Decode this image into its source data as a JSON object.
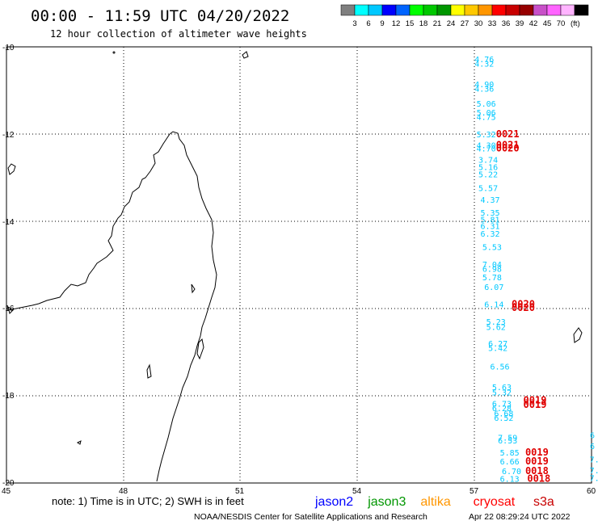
{
  "header": {
    "title": "00:00 - 11:59 UTC 04/20/2022",
    "subtitle": "12 hour collection of altimeter wave heights"
  },
  "legend": {
    "colors": [
      "#7f7f7f",
      "#00ffff",
      "#00c8ff",
      "#0000ff",
      "#0064ff",
      "#00ff00",
      "#00c800",
      "#009600",
      "#ffff00",
      "#ffc800",
      "#ff9600",
      "#ff0000",
      "#c80000",
      "#960000",
      "#c850c8",
      "#ff64ff",
      "#ffb4ff",
      "#000000"
    ],
    "labels": [
      "3",
      "6",
      "9",
      "12",
      "15",
      "18",
      "21",
      "24",
      "27",
      "30",
      "33",
      "36",
      "39",
      "42",
      "45",
      "70"
    ],
    "unit": "(ft)"
  },
  "axes": {
    "lat_labels": [
      "-10",
      "-12",
      "-14",
      "-16",
      "-18",
      "-20"
    ],
    "lon_labels": [
      "45",
      "48",
      "51",
      "54",
      "57",
      "60"
    ]
  },
  "footer": {
    "note": "note: 1) Time is in UTC; 2) SWH is in feet",
    "satellites": [
      {
        "name": "jason2",
        "color": "#0000ff"
      },
      {
        "name": "jason3",
        "color": "#009600"
      },
      {
        "name": "altika",
        "color": "#ff9600"
      },
      {
        "name": "cryosat",
        "color": "#ff0000"
      },
      {
        "name": "s3a",
        "color": "#c80000"
      }
    ],
    "credit": "NOAA/NESDIS Center for Satellite Applications and Research",
    "timestamp": "Apr 22 08:29:24 UTC 2022"
  },
  "wave_heights": [
    {
      "lat": -10.28,
      "lon": 57.0,
      "v": "4.76"
    },
    {
      "lat": -10.38,
      "lon": 57.0,
      "v": "4.32"
    },
    {
      "lat": -10.85,
      "lon": 57.0,
      "v": "4.90"
    },
    {
      "lat": -10.95,
      "lon": 57.0,
      "v": "4.36"
    },
    {
      "lat": -11.3,
      "lon": 57.05,
      "v": "5.06"
    },
    {
      "lat": -11.5,
      "lon": 57.05,
      "v": "5.06"
    },
    {
      "lat": -11.6,
      "lon": 57.05,
      "v": "4.75"
    },
    {
      "lat": -12.0,
      "lon": 57.05,
      "v": "5.32"
    },
    {
      "lat": -12.25,
      "lon": 57.05,
      "v": "4.30"
    },
    {
      "lat": -12.32,
      "lon": 57.05,
      "v": "4.70"
    },
    {
      "lat": -12.58,
      "lon": 57.1,
      "v": "3.74"
    },
    {
      "lat": -12.75,
      "lon": 57.1,
      "v": "5.16"
    },
    {
      "lat": -12.92,
      "lon": 57.1,
      "v": "5.22"
    },
    {
      "lat": -13.23,
      "lon": 57.1,
      "v": "5.57"
    },
    {
      "lat": -13.5,
      "lon": 57.15,
      "v": "4.37"
    },
    {
      "lat": -13.8,
      "lon": 57.15,
      "v": "5.35"
    },
    {
      "lat": -13.95,
      "lon": 57.15,
      "v": "5.81"
    },
    {
      "lat": -14.1,
      "lon": 57.15,
      "v": "6.31"
    },
    {
      "lat": -14.28,
      "lon": 57.15,
      "v": "6.32"
    },
    {
      "lat": -14.58,
      "lon": 57.2,
      "v": "5.53"
    },
    {
      "lat": -14.98,
      "lon": 57.2,
      "v": "7.04"
    },
    {
      "lat": -15.08,
      "lon": 57.2,
      "v": "6.98"
    },
    {
      "lat": -15.28,
      "lon": 57.2,
      "v": "5.78"
    },
    {
      "lat": -15.5,
      "lon": 57.25,
      "v": "6.07"
    },
    {
      "lat": -15.9,
      "lon": 57.25,
      "v": "6.14"
    },
    {
      "lat": -16.3,
      "lon": 57.3,
      "v": "5.23"
    },
    {
      "lat": -16.42,
      "lon": 57.3,
      "v": "5.62"
    },
    {
      "lat": -16.8,
      "lon": 57.35,
      "v": "6.27"
    },
    {
      "lat": -16.9,
      "lon": 57.35,
      "v": "5.42"
    },
    {
      "lat": -17.32,
      "lon": 57.4,
      "v": "6.56"
    },
    {
      "lat": -17.8,
      "lon": 57.45,
      "v": "5.63"
    },
    {
      "lat": -17.92,
      "lon": 57.45,
      "v": "5.32"
    },
    {
      "lat": -18.18,
      "lon": 57.45,
      "v": "6.73"
    },
    {
      "lat": -18.28,
      "lon": 57.45,
      "v": "6.28"
    },
    {
      "lat": -18.4,
      "lon": 57.5,
      "v": "6.68"
    },
    {
      "lat": -18.5,
      "lon": 57.5,
      "v": "6.52"
    },
    {
      "lat": -18.95,
      "lon": 57.6,
      "v": "7.59"
    },
    {
      "lat": -19.02,
      "lon": 57.6,
      "v": "6.53"
    },
    {
      "lat": -19.3,
      "lon": 57.65,
      "v": "5.85"
    },
    {
      "lat": -19.5,
      "lon": 57.65,
      "v": "6.66"
    },
    {
      "lat": -19.72,
      "lon": 57.7,
      "v": "6.70"
    },
    {
      "lat": -19.9,
      "lon": 57.65,
      "v": "6.13"
    }
  ],
  "passes": [
    {
      "lat": -12.0,
      "lon": 57.55,
      "v": "0021"
    },
    {
      "lat": -12.25,
      "lon": 57.55,
      "v": "0021"
    },
    {
      "lat": -12.32,
      "lon": 57.55,
      "v": "0020"
    },
    {
      "lat": -15.9,
      "lon": 57.95,
      "v": "0020"
    },
    {
      "lat": -15.98,
      "lon": 57.95,
      "v": "0020"
    },
    {
      "lat": -18.1,
      "lon": 58.25,
      "v": "0019"
    },
    {
      "lat": -18.2,
      "lon": 58.25,
      "v": "0019"
    },
    {
      "lat": -19.3,
      "lon": 58.3,
      "v": "0019"
    },
    {
      "lat": -19.5,
      "lon": 58.3,
      "v": "0019"
    },
    {
      "lat": -19.72,
      "lon": 58.3,
      "v": "0018"
    },
    {
      "lat": -19.9,
      "lon": 58.35,
      "v": "0018"
    }
  ],
  "edge_values": [
    {
      "lat": -18.9,
      "lon": 60.05,
      "v": "6"
    },
    {
      "lat": -19.15,
      "lon": 60.05,
      "v": "6"
    },
    {
      "lat": -19.45,
      "lon": 59.95,
      "v": "7."
    },
    {
      "lat": -19.7,
      "lon": 59.95,
      "v": "7."
    },
    {
      "lat": -19.88,
      "lon": 59.95,
      "v": "7.1"
    }
  ]
}
